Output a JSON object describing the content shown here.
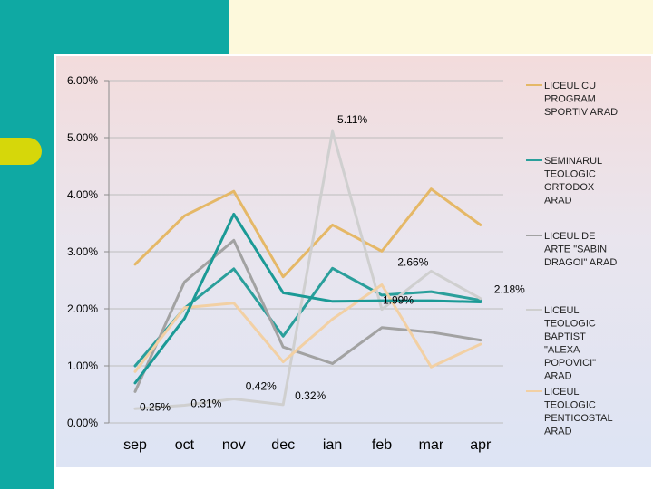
{
  "chart_data": {
    "type": "line",
    "title": "",
    "xlabel": "",
    "ylabel": "",
    "ylim": [
      0,
      6
    ],
    "yticks": [
      "0.00%",
      "1.00%",
      "2.00%",
      "3.00%",
      "4.00%",
      "5.00%",
      "6.00%"
    ],
    "categories": [
      "sep",
      "oct",
      "nov",
      "dec",
      "ian",
      "feb",
      "mar",
      "apr"
    ],
    "legend_position": "right",
    "series": [
      {
        "name": "LICEUL CU PROGRAM SPORTIV ARAD",
        "legend_lines": [
          "LICEUL CU",
          "PROGRAM",
          "SPORTIV ARAD"
        ],
        "color": "#e5b867",
        "values": [
          2.78,
          3.63,
          4.06,
          2.56,
          3.47,
          3.01,
          4.1,
          3.47
        ]
      },
      {
        "name": "SEMINARUL TEOLOGIC ORTODOX ARAD",
        "legend_lines": [
          "SEMINARUL",
          "TEOLOGIC",
          "ORTODOX",
          "ARAD"
        ],
        "color": "#2a9f9b",
        "values": [
          1.0,
          2.01,
          2.7,
          1.52,
          2.71,
          2.24,
          2.3,
          2.15
        ]
      },
      {
        "name": "LICEUL DE ARTE \"SABIN DRAGOI\" ARAD",
        "legend_lines": [
          "LICEUL DE",
          "ARTE \"SABIN",
          "DRAGOI\" ARAD"
        ],
        "color": "#a2a2a2",
        "values": [
          0.55,
          2.47,
          3.2,
          1.33,
          1.04,
          1.67,
          1.59,
          1.45
        ]
      },
      {
        "name": "LICEUL TEOLOGIC BAPTIST \"ALEXA POPOVICI\" ARAD",
        "legend_lines": [
          "LICEUL",
          "TEOLOGIC",
          "BAPTIST",
          "\"ALEXA",
          "POPOVICI\"",
          "ARAD"
        ],
        "color": "#cfcfcf",
        "values": [
          0.25,
          0.31,
          0.42,
          0.32,
          5.11,
          1.99,
          2.66,
          2.18
        ]
      },
      {
        "name": "LICEUL TEOLOGIC PENTICOSTAL ARAD",
        "legend_lines": [
          "LICEUL",
          "TEOLOGIC",
          "PENTICOSTAL",
          "ARAD"
        ],
        "color": "#f2d0a4",
        "values": [
          0.9,
          2.02,
          2.1,
          1.07,
          1.82,
          2.42,
          0.98,
          1.38
        ]
      },
      {
        "name": "",
        "legend_lines": [],
        "color": "#1b9a96",
        "values": [
          0.7,
          1.83,
          3.66,
          2.28,
          2.13,
          2.14,
          2.14,
          2.12
        ]
      }
    ],
    "data_labels": [
      {
        "series": 3,
        "index": 0,
        "text": "0.25%"
      },
      {
        "series": 3,
        "index": 1,
        "text": "0.31%"
      },
      {
        "series": 3,
        "index": 2,
        "text": "0.42%"
      },
      {
        "series": 3,
        "index": 3,
        "text": "0.32%"
      },
      {
        "series": 3,
        "index": 4,
        "text": "5.11%"
      },
      {
        "series": 3,
        "index": 5,
        "text": "1.99%"
      },
      {
        "series": 3,
        "index": 6,
        "text": "2.66%"
      },
      {
        "series": 3,
        "index": 7,
        "text": "2.18%"
      }
    ]
  }
}
